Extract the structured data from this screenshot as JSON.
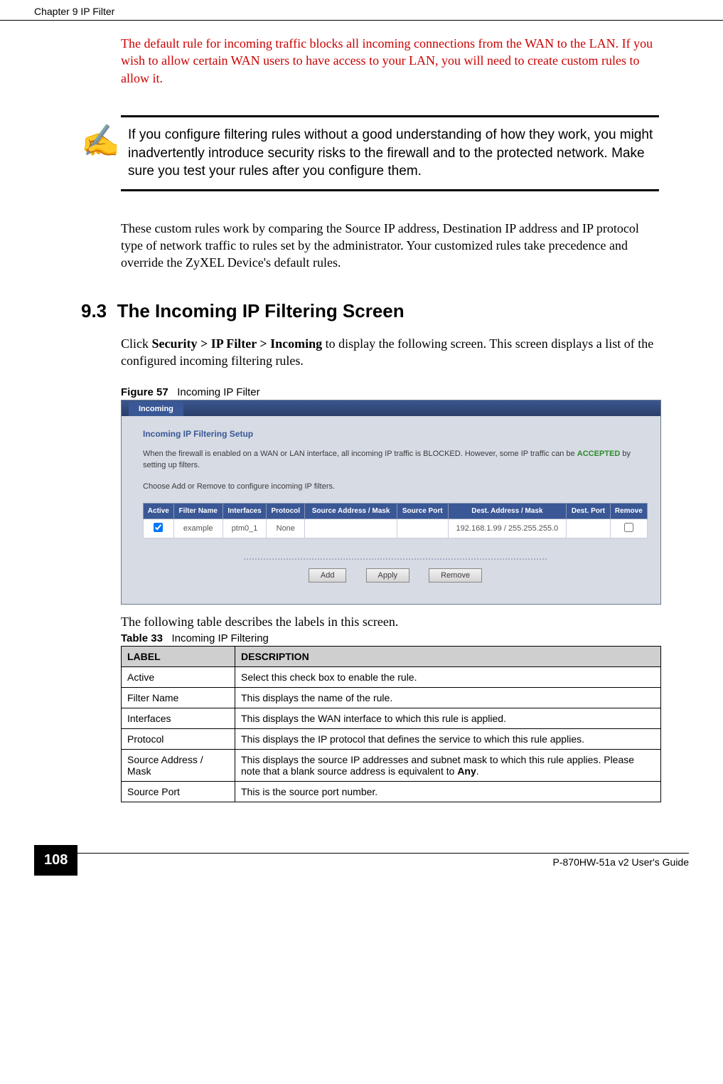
{
  "header": {
    "left": "Chapter 9 IP Filter"
  },
  "paragraphs": {
    "red": "The default rule for incoming traffic blocks all incoming connections from the WAN to the LAN. If you wish to allow certain WAN users to have access to your LAN, you will need to create custom rules to allow it.",
    "note": "If you configure filtering rules without a good understanding of how they work, you might inadvertently introduce security risks to the firewall and to the protected network. Make sure you test your rules after you configure them.",
    "body": "These custom rules work by comparing the Source IP address, Destination IP address and IP protocol type of network traffic to rules set by the administrator. Your customized rules take precedence and override the ZyXEL Device's default rules.",
    "click_pre": "Click ",
    "click_bold": "Security > IP Filter > Incoming",
    "click_post": " to display the following screen. This screen displays a list of the configured incoming filtering rules.",
    "table_intro": "The following table describes the labels in this screen."
  },
  "section": {
    "number": "9.3",
    "title": "The Incoming IP Filtering Screen"
  },
  "figure": {
    "label_prefix": "Figure 57",
    "label_text": "Incoming IP Filter"
  },
  "screenshot": {
    "tab": "Incoming",
    "panel_title": "Incoming IP Filtering Setup",
    "desc_line1": "When the firewall is enabled on a WAN or LAN interface, all incoming IP traffic is BLOCKED. However, some IP traffic can be ",
    "desc_accepted": "ACCEPTED",
    "desc_line1b": " by setting up filters.",
    "desc_line2": "Choose Add or Remove to configure incoming IP filters.",
    "columns": [
      "Active",
      "Filter Name",
      "Interfaces",
      "Protocol",
      "Source Address / Mask",
      "Source Port",
      "Dest. Address / Mask",
      "Dest. Port",
      "Remove"
    ],
    "row": {
      "active_checked": true,
      "filter_name": "example",
      "interfaces": "ptm0_1",
      "protocol": "None",
      "src_addr": "",
      "src_port": "",
      "dest_addr": "192.168.1.99 / 255.255.255.0",
      "dest_port": "",
      "remove_checked": false
    },
    "buttons": {
      "add": "Add",
      "apply": "Apply",
      "remove": "Remove"
    }
  },
  "table33": {
    "label_prefix": "Table 33",
    "label_text": "Incoming IP Filtering",
    "headers": [
      "LABEL",
      "DESCRIPTION"
    ],
    "rows": [
      [
        "Active",
        "Select this check box to enable the rule."
      ],
      [
        "Filter Name",
        "This displays the name of the rule."
      ],
      [
        "Interfaces",
        "This displays the WAN interface to which this rule is applied."
      ],
      [
        "Protocol",
        "This displays the IP protocol that defines the service to which this rule applies."
      ],
      [
        "Source Address / Mask",
        "This displays the source IP addresses and subnet mask to which this rule applies. Please note that a blank source address is equivalent to Any."
      ],
      [
        "Source Port",
        "This is the source port number."
      ]
    ]
  },
  "footer": {
    "page_number": "108",
    "guide": "P-870HW-51a v2 User's Guide"
  }
}
